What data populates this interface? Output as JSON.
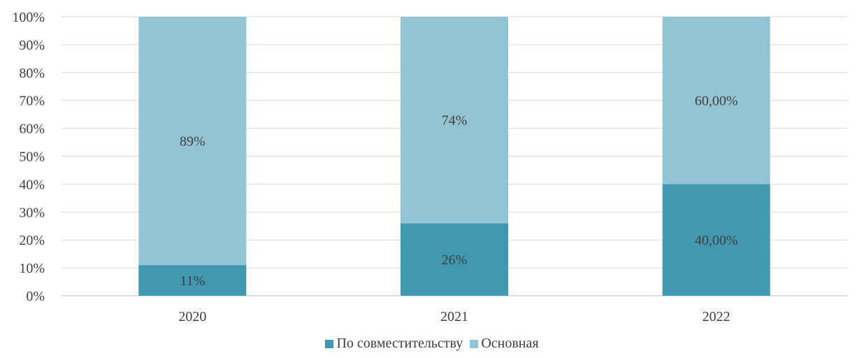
{
  "chart_data": {
    "type": "bar",
    "stacked": true,
    "categories": [
      "2020",
      "2021",
      "2022"
    ],
    "series": [
      {
        "name": "По совместительству",
        "values": [
          11,
          26,
          40
        ],
        "labels": [
          "11%",
          "26%",
          "40,00%"
        ],
        "color": "#4198b0"
      },
      {
        "name": "Основная",
        "values": [
          89,
          74,
          60
        ],
        "labels": [
          "89%",
          "74%",
          "60,00%"
        ],
        "color": "#93c4d4"
      }
    ],
    "yticks": [
      "0%",
      "10%",
      "20%",
      "30%",
      "40%",
      "50%",
      "60%",
      "70%",
      "80%",
      "90%",
      "100%"
    ],
    "ylim": [
      0,
      100
    ],
    "grid": true,
    "legend_position": "bottom",
    "title": "",
    "xlabel": "",
    "ylabel": ""
  }
}
